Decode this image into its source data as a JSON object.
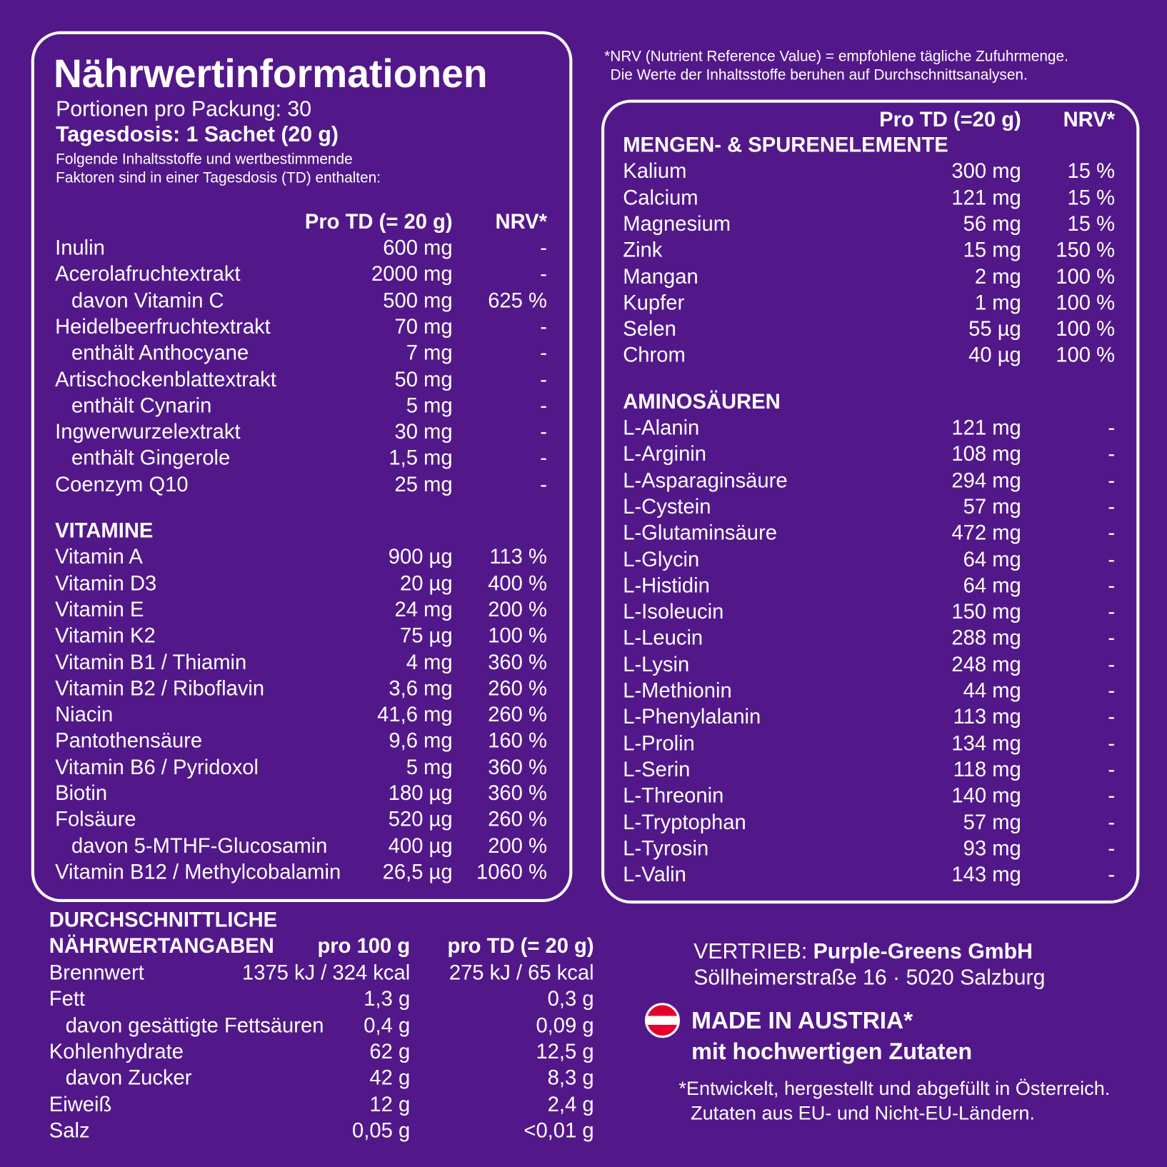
{
  "left_panel": {
    "title": "Nährwertinformationen",
    "servings": "Portionen pro Packung: 30",
    "daily_dose": "Tagesdosis: 1 Sachet (20 g)",
    "intro": [
      "Folgende Inhaltsstoffe und wertbestimmende",
      "Faktoren sind in einer Tagesdosis (TD) enthalten:"
    ],
    "columns": [
      "Pro TD (= 20 g)",
      "NRV*"
    ],
    "groups": [
      {
        "items": [
          {
            "name": "Inulin",
            "values": [
              "600 mg",
              "-"
            ]
          },
          {
            "name": "Acerolafruchtextrakt",
            "values": [
              "2000 mg",
              "-"
            ],
            "sub": [
              {
                "name": "davon Vitamin C",
                "values": [
                  "500 mg",
                  "625 %"
                ]
              }
            ]
          },
          {
            "name": "Heidelbeerfruchtextrakt",
            "values": [
              "70 mg",
              "-"
            ],
            "sub": [
              {
                "name": "enthält Anthocyane",
                "values": [
                  "7 mg",
                  "-"
                ]
              }
            ]
          },
          {
            "name": "Artischockenblattextrakt",
            "values": [
              "50 mg",
              "-"
            ],
            "sub": [
              {
                "name": "enthält Cynarin",
                "values": [
                  "5 mg",
                  "-"
                ]
              }
            ]
          },
          {
            "name": "Ingwerwurzelextrakt",
            "values": [
              "30 mg",
              "-"
            ],
            "sub": [
              {
                "name": "enthält Gingerole",
                "values": [
                  "1,5 mg",
                  "-"
                ]
              }
            ]
          },
          {
            "name": "Coenzym Q10",
            "values": [
              "25 mg",
              "-"
            ]
          }
        ]
      },
      {
        "heading": "VITAMINE",
        "items": [
          {
            "name": "Vitamin A",
            "values": [
              "900 µg",
              "113 %"
            ]
          },
          {
            "name": "Vitamin D3",
            "values": [
              "20 µg",
              "400 %"
            ]
          },
          {
            "name": "Vitamin E",
            "values": [
              "24 mg",
              "200 %"
            ]
          },
          {
            "name": "Vitamin K2",
            "values": [
              "75 µg",
              "100 %"
            ]
          },
          {
            "name": "Vitamin B1 / Thiamin",
            "values": [
              "4 mg",
              "360 %"
            ]
          },
          {
            "name": "Vitamin B2 / Riboflavin",
            "values": [
              "3,6 mg",
              "260 %"
            ]
          },
          {
            "name": "Niacin",
            "values": [
              "41,6 mg",
              "260 %"
            ]
          },
          {
            "name": "Pantothensäure",
            "values": [
              "9,6 mg",
              "160 %"
            ]
          },
          {
            "name": "Vitamin B6 / Pyridoxol",
            "values": [
              "5 mg",
              "360 %"
            ]
          },
          {
            "name": "Biotin",
            "values": [
              "180 µg",
              "360 %"
            ]
          },
          {
            "name": "Folsäure",
            "values": [
              "520 µg",
              "260 %"
            ],
            "sub": [
              {
                "name": "davon 5-MTHF-Glucosamin",
                "values": [
                  "400 µg",
                  "200 %"
                ]
              }
            ]
          },
          {
            "name": "Vitamin B12 / Methylcobalamin",
            "values": [
              "26,5 µg",
              "1060 %"
            ]
          }
        ]
      }
    ]
  },
  "right_panel": {
    "note": [
      "*NRV (Nutrient Reference Value) = empfohlene tägliche Zufuhrmenge.",
      "Die Werte der Inhaltsstoffe beruhen auf Durchschnittsanalysen."
    ],
    "columns": [
      "Pro TD (=20 g)",
      "NRV*"
    ],
    "groups": [
      {
        "heading": "MENGEN- & SPURENELEMENTE",
        "items": [
          {
            "name": "Kalium",
            "values": [
              "300 mg",
              "15 %"
            ]
          },
          {
            "name": "Calcium",
            "values": [
              "121 mg",
              "15 %"
            ]
          },
          {
            "name": "Magnesium",
            "values": [
              "56 mg",
              "15 %"
            ]
          },
          {
            "name": "Zink",
            "values": [
              "15 mg",
              "150 %"
            ]
          },
          {
            "name": "Mangan",
            "values": [
              "2 mg",
              "100 %"
            ]
          },
          {
            "name": "Kupfer",
            "values": [
              "1 mg",
              "100 %"
            ]
          },
          {
            "name": "Selen",
            "values": [
              "55 µg",
              "100 %"
            ]
          },
          {
            "name": "Chrom",
            "values": [
              "40 µg",
              "100 %"
            ]
          }
        ]
      },
      {
        "heading": "AMINOSÄUREN",
        "items": [
          {
            "name": "L-Alanin",
            "values": [
              "121 mg",
              "-"
            ]
          },
          {
            "name": "L-Arginin",
            "values": [
              "108 mg",
              "-"
            ]
          },
          {
            "name": "L-Asparaginsäure",
            "values": [
              "294 mg",
              "-"
            ]
          },
          {
            "name": "L-Cystein",
            "values": [
              "57 mg",
              "-"
            ]
          },
          {
            "name": "L-Glutaminsäure",
            "values": [
              "472 mg",
              "-"
            ]
          },
          {
            "name": "L-Glycin",
            "values": [
              "64 mg",
              "-"
            ]
          },
          {
            "name": "L-Histidin",
            "values": [
              "64 mg",
              "-"
            ]
          },
          {
            "name": "L-Isoleucin",
            "values": [
              "150 mg",
              "-"
            ]
          },
          {
            "name": "L-Leucin",
            "values": [
              "288 mg",
              "-"
            ]
          },
          {
            "name": "L-Lysin",
            "values": [
              "248 mg",
              "-"
            ]
          },
          {
            "name": "L-Methionin",
            "values": [
              "44 mg",
              "-"
            ]
          },
          {
            "name": "L-Phenylalanin",
            "values": [
              "113 mg",
              "-"
            ]
          },
          {
            "name": "L-Prolin",
            "values": [
              "134 mg",
              "-"
            ]
          },
          {
            "name": "L-Serin",
            "values": [
              "118 mg",
              "-"
            ]
          },
          {
            "name": "L-Threonin",
            "values": [
              "140 mg",
              "-"
            ]
          },
          {
            "name": "L-Tryptophan",
            "values": [
              "57 mg",
              "-"
            ]
          },
          {
            "name": "L-Tyrosin",
            "values": [
              "93 mg",
              "-"
            ]
          },
          {
            "name": "L-Valin",
            "values": [
              "143 mg",
              "-"
            ]
          }
        ]
      }
    ]
  },
  "nutrition": {
    "heading": [
      "DURCHSCHNITTLICHE",
      "NÄHRWERTANGABEN"
    ],
    "columns": [
      "pro 100 g",
      "pro TD (= 20 g)"
    ],
    "items": [
      {
        "name": "Brennwert",
        "values": [
          "1375 kJ / 324 kcal",
          "275 kJ / 65 kcal"
        ]
      },
      {
        "name": "Fett",
        "values": [
          "1,3 g",
          "0,3 g"
        ],
        "sub": [
          {
            "name": "davon gesättigte Fettsäuren",
            "values": [
              "0,4 g",
              "0,09 g"
            ]
          }
        ]
      },
      {
        "name": "Kohlenhydrate",
        "values": [
          "62 g",
          "12,5 g"
        ],
        "sub": [
          {
            "name": "davon Zucker",
            "values": [
              "42 g",
              "8,3 g"
            ]
          }
        ]
      },
      {
        "name": "Eiweiß",
        "values": [
          "12 g",
          "2,4 g"
        ]
      },
      {
        "name": "Salz",
        "values": [
          "0,05 g",
          "<0,01 g"
        ]
      }
    ]
  },
  "company": {
    "label": "VERTRIEB:",
    "name": "Purple-Greens GmbH",
    "address": "Söllheimerstraße 16 · 5020 Salzburg",
    "made_in": "MADE IN AUSTRIA*",
    "claim": "mit hochwertigen Zutaten",
    "footnote": [
      "*Entwickelt, hergestellt und abgefüllt in Österreich.",
      "Zutaten aus EU- und Nicht-EU-Ländern."
    ]
  }
}
